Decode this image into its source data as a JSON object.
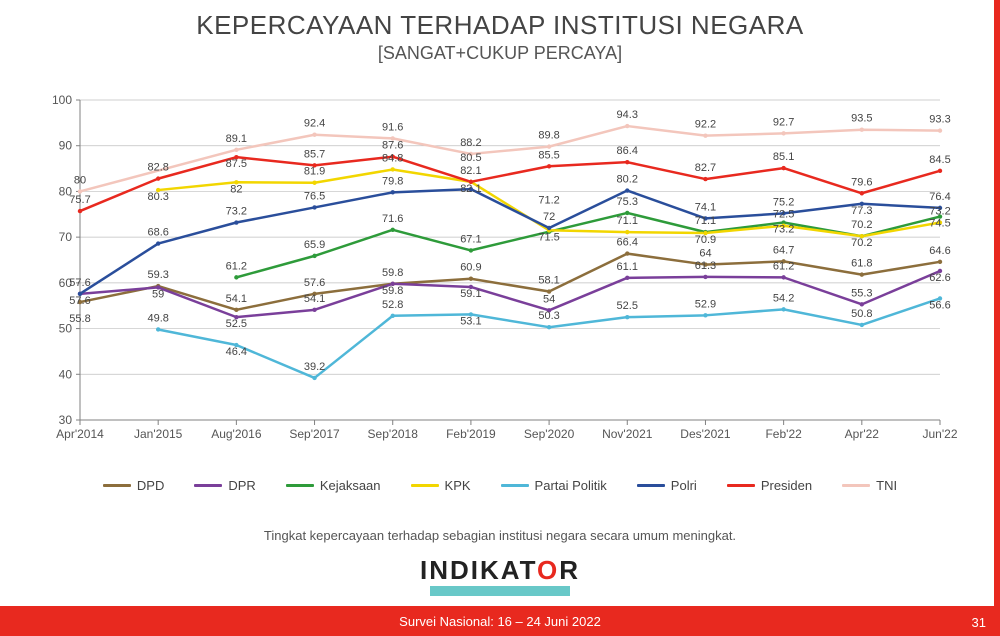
{
  "header": {
    "title": "KEPERCAYAAN TERHADAP INSTITUSI NEGARA",
    "subtitle": "[SANGAT+CUKUP PERCAYA]"
  },
  "chart": {
    "type": "line",
    "background_color": "#ffffff",
    "grid_color": "#bfbfbf",
    "axis_color": "#808080",
    "label_fontsize": 12,
    "val_label_fontsize": 11,
    "ylim": [
      30,
      100
    ],
    "yticks": [
      30,
      40,
      50,
      60,
      70,
      80,
      90,
      100
    ],
    "x_labels": [
      "Apr'2014",
      "Jan'2015",
      "Aug'2016",
      "Sep'2017",
      "Sep'2018",
      "Feb'2019",
      "Sep'2020",
      "Nov'2021",
      "Des'2021",
      "Feb'22",
      "Apr'22",
      "Jun'22"
    ],
    "line_width": 2.5,
    "series": [
      {
        "name": "DPD",
        "color": "#8c6e3c",
        "values": [
          55.8,
          59.3,
          54.1,
          57.6,
          59.8,
          60.9,
          58.1,
          66.4,
          64.0,
          64.7,
          61.8,
          64.6
        ]
      },
      {
        "name": "DPR",
        "color": "#7a3f9a",
        "values": [
          57.6,
          59.0,
          52.5,
          54.1,
          59.8,
          59.1,
          54.0,
          61.1,
          61.3,
          61.2,
          55.3,
          62.6
        ]
      },
      {
        "name": "Kejaksaan",
        "color": "#2e9b3a",
        "values": [
          null,
          null,
          61.2,
          65.9,
          71.6,
          67.1,
          71.2,
          75.3,
          71.1,
          73.2,
          70.2,
          74.5
        ]
      },
      {
        "name": "KPK",
        "color": "#f2d600",
        "values": [
          null,
          80.3,
          82.0,
          81.9,
          84.8,
          82.1,
          71.5,
          71.1,
          70.9,
          72.5,
          70.2,
          73.2
        ]
      },
      {
        "name": "Partai Politik",
        "color": "#4fb7d8",
        "values": [
          null,
          49.8,
          46.4,
          39.2,
          52.8,
          53.1,
          50.3,
          52.5,
          52.9,
          54.2,
          50.8,
          56.6
        ]
      },
      {
        "name": "Polri",
        "color": "#2a4e9b",
        "values": [
          57.6,
          68.6,
          73.2,
          76.5,
          79.8,
          80.5,
          72.0,
          80.2,
          74.1,
          75.2,
          77.3,
          76.4
        ]
      },
      {
        "name": "Presiden",
        "color": "#e8291f",
        "values": [
          75.7,
          82.8,
          87.5,
          85.7,
          87.6,
          82.1,
          85.5,
          86.4,
          82.7,
          85.1,
          79.6,
          84.5
        ]
      },
      {
        "name": "TNI",
        "color": "#f3c6bc",
        "values": [
          80.0,
          null,
          89.1,
          92.4,
          91.6,
          88.2,
          89.8,
          94.3,
          92.2,
          92.7,
          93.5,
          93.3
        ]
      }
    ]
  },
  "caption": "Tingkat kepercayaan terhadap sebagian institusi negara secara umum meningkat.",
  "logo": {
    "text_pre": "INDIKAT",
    "o": "O",
    "text_post": "R"
  },
  "footer": {
    "text": "Survei Nasional: 16 – 24 Juni 2022",
    "page_num": "31"
  }
}
